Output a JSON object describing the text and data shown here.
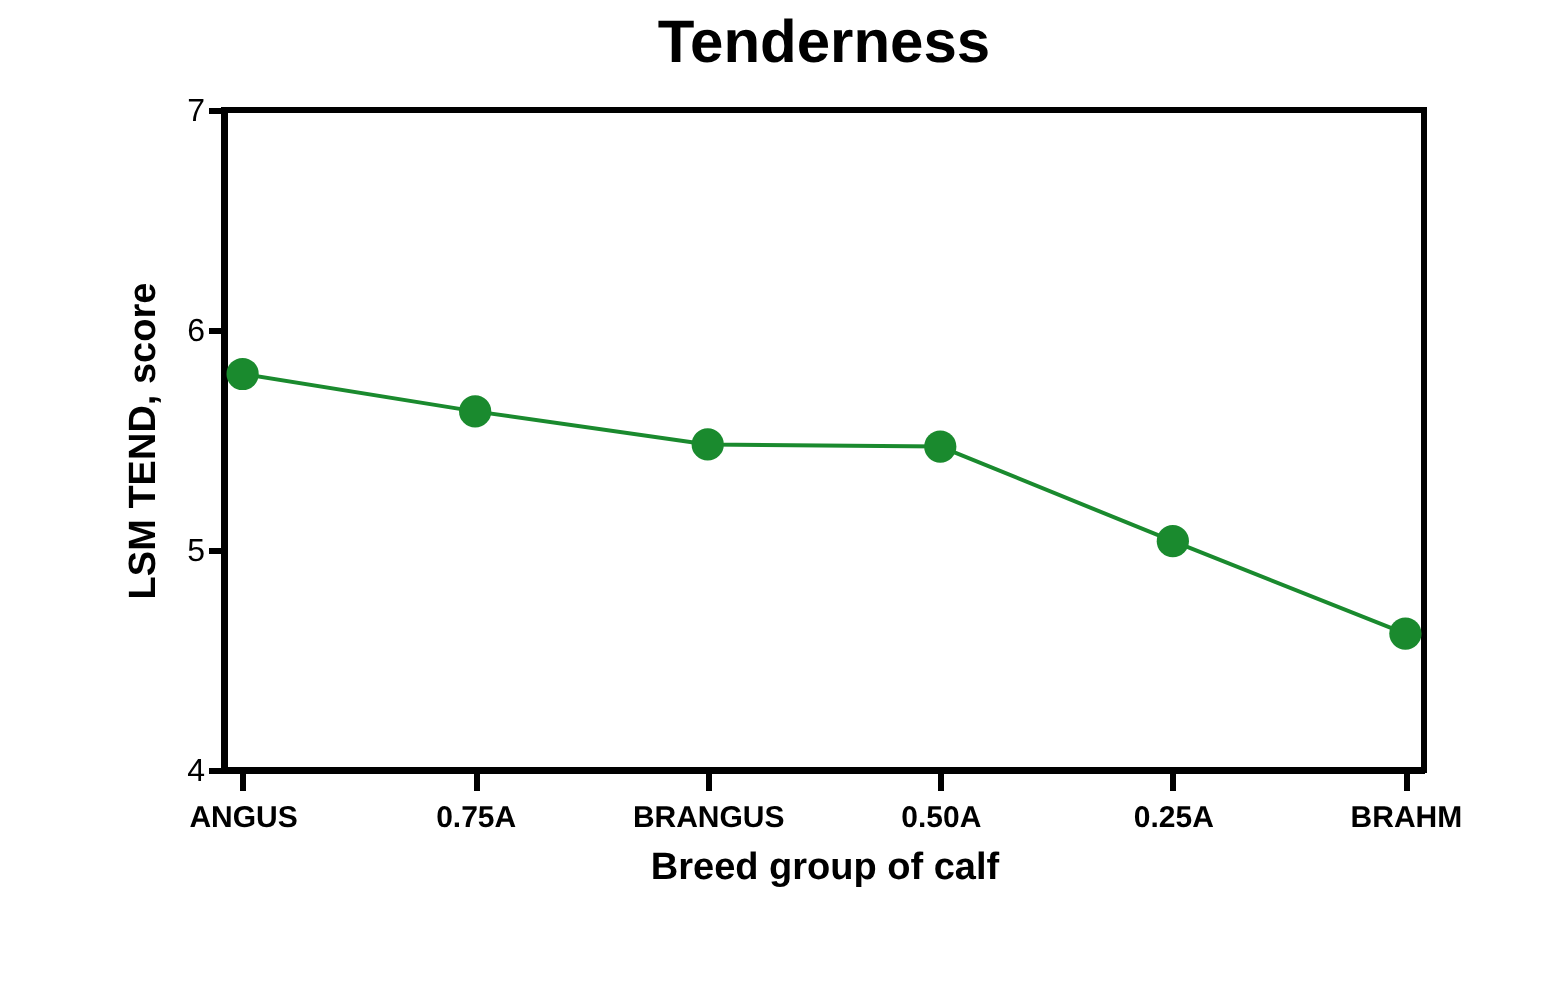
{
  "chart_data": {
    "type": "line",
    "title": "Tenderness",
    "xlabel": "Breed group of calf",
    "ylabel": "LSM TEND, score",
    "categories": [
      "ANGUS",
      "0.75A",
      "BRANGUS",
      "0.50A",
      "0.25A",
      "BRAHM"
    ],
    "series": [
      {
        "color": "#1a8a2e",
        "values": [
          5.8,
          5.63,
          5.48,
          5.47,
          5.04,
          4.62
        ]
      }
    ],
    "ylim": [
      4,
      7
    ],
    "yticks": [
      4,
      5,
      6,
      7
    ],
    "grid": false,
    "legend": false,
    "marker": "circle",
    "line_style": "solid"
  }
}
